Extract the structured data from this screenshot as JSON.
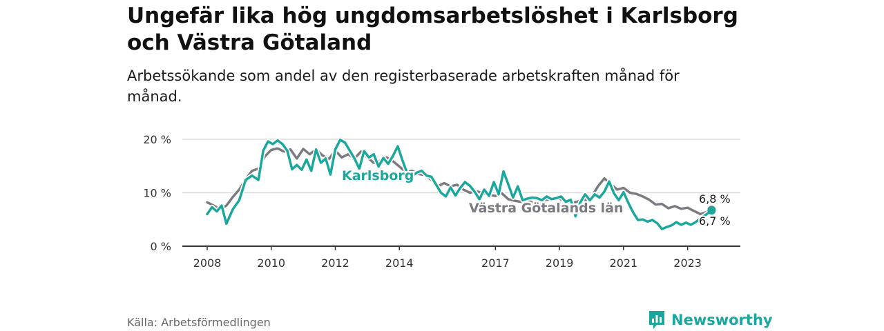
{
  "header": {
    "title": "Ungefär lika hög ungdomsarbetslöshet i Karlsborg och Västra Götaland",
    "subtitle": "Arbetssökande som andel av den registerbaserade arbetskraften månad för månad."
  },
  "footer": {
    "source": "Källa: Arbetsförmedlingen",
    "brand": "Newsworthy",
    "logo_icon": "bar-chart-logo-icon"
  },
  "colors": {
    "karlsborg": "#1aa79c",
    "vastra_gotaland": "#7b7a80",
    "grid": "#d9d9d9",
    "axis": "#333333"
  },
  "chart_data": {
    "type": "line",
    "ylim": [
      0,
      20
    ],
    "xlim": [
      2008,
      2024
    ],
    "yticks": [
      {
        "value": 0,
        "label": "0 %"
      },
      {
        "value": 10,
        "label": "10 %"
      },
      {
        "value": 20,
        "label": "20 %"
      }
    ],
    "xticks": [
      {
        "value": 2008,
        "label": "2008"
      },
      {
        "value": 2010,
        "label": "2010"
      },
      {
        "value": 2012,
        "label": "2012"
      },
      {
        "value": 2014,
        "label": "2014"
      },
      {
        "value": 2017,
        "label": "2017"
      },
      {
        "value": 2019,
        "label": "2019"
      },
      {
        "value": 2021,
        "label": "2021"
      },
      {
        "value": 2023,
        "label": "2023"
      }
    ],
    "series": [
      {
        "name": "Västra Götalands län",
        "label": "Västra Götalands län",
        "end_label": "6,8 %",
        "points": [
          [
            2008.0,
            8.2
          ],
          [
            2008.2,
            7.6
          ],
          [
            2008.4,
            6.9
          ],
          [
            2008.6,
            7.6
          ],
          [
            2008.8,
            9.2
          ],
          [
            2009.0,
            10.6
          ],
          [
            2009.2,
            12.5
          ],
          [
            2009.4,
            14.1
          ],
          [
            2009.6,
            14.5
          ],
          [
            2009.8,
            16.8
          ],
          [
            2010.0,
            18.0
          ],
          [
            2010.2,
            18.3
          ],
          [
            2010.4,
            17.7
          ],
          [
            2010.6,
            18.1
          ],
          [
            2010.8,
            16.4
          ],
          [
            2011.0,
            18.2
          ],
          [
            2011.2,
            17.2
          ],
          [
            2011.4,
            18.1
          ],
          [
            2011.6,
            17.0
          ],
          [
            2011.8,
            16.3
          ],
          [
            2012.0,
            17.9
          ],
          [
            2012.2,
            16.6
          ],
          [
            2012.4,
            17.2
          ],
          [
            2012.6,
            16.4
          ],
          [
            2012.8,
            17.7
          ],
          [
            2013.0,
            16.6
          ],
          [
            2013.2,
            15.6
          ],
          [
            2013.4,
            16.0
          ],
          [
            2013.6,
            16.6
          ],
          [
            2013.8,
            15.9
          ],
          [
            2014.0,
            14.9
          ],
          [
            2014.2,
            13.9
          ],
          [
            2014.4,
            14.1
          ],
          [
            2014.6,
            13.5
          ],
          [
            2014.8,
            13.3
          ],
          [
            2015.0,
            12.4
          ],
          [
            2015.2,
            11.2
          ],
          [
            2015.4,
            11.8
          ],
          [
            2015.6,
            11.2
          ],
          [
            2015.8,
            11.5
          ],
          [
            2016.0,
            10.6
          ],
          [
            2016.2,
            10.0
          ],
          [
            2016.4,
            10.3
          ],
          [
            2016.6,
            9.9
          ],
          [
            2016.8,
            9.6
          ],
          [
            2017.0,
            9.4
          ],
          [
            2017.2,
            9.9
          ],
          [
            2017.4,
            8.8
          ],
          [
            2017.6,
            8.5
          ],
          [
            2017.8,
            8.3
          ],
          [
            2018.0,
            8.5
          ],
          [
            2018.2,
            8.1
          ],
          [
            2018.4,
            8.4
          ],
          [
            2018.6,
            8.7
          ],
          [
            2018.8,
            8.8
          ],
          [
            2019.0,
            8.9
          ],
          [
            2019.2,
            8.3
          ],
          [
            2019.4,
            8.1
          ],
          [
            2019.6,
            8.4
          ],
          [
            2019.8,
            8.6
          ],
          [
            2020.0,
            9.2
          ],
          [
            2020.2,
            11.2
          ],
          [
            2020.4,
            12.7
          ],
          [
            2020.6,
            11.6
          ],
          [
            2020.8,
            10.6
          ],
          [
            2021.0,
            10.9
          ],
          [
            2021.2,
            10.0
          ],
          [
            2021.4,
            9.8
          ],
          [
            2021.6,
            9.3
          ],
          [
            2021.8,
            8.7
          ],
          [
            2022.0,
            7.8
          ],
          [
            2022.2,
            7.9
          ],
          [
            2022.4,
            7.1
          ],
          [
            2022.6,
            7.5
          ],
          [
            2022.8,
            7.0
          ],
          [
            2023.0,
            7.2
          ],
          [
            2023.2,
            6.6
          ],
          [
            2023.4,
            6.0
          ],
          [
            2023.6,
            6.4
          ],
          [
            2023.75,
            6.8
          ]
        ]
      },
      {
        "name": "Karlsborg",
        "label": "Karlsborg",
        "end_label": "6,7 %",
        "points": [
          [
            2008.0,
            6.0
          ],
          [
            2008.15,
            7.3
          ],
          [
            2008.3,
            6.5
          ],
          [
            2008.45,
            7.6
          ],
          [
            2008.6,
            4.2
          ],
          [
            2008.8,
            6.9
          ],
          [
            2009.0,
            8.6
          ],
          [
            2009.2,
            12.4
          ],
          [
            2009.4,
            13.2
          ],
          [
            2009.6,
            12.4
          ],
          [
            2009.75,
            17.9
          ],
          [
            2009.9,
            19.6
          ],
          [
            2010.05,
            19.1
          ],
          [
            2010.2,
            19.8
          ],
          [
            2010.35,
            19.1
          ],
          [
            2010.5,
            17.9
          ],
          [
            2010.65,
            14.4
          ],
          [
            2010.8,
            15.2
          ],
          [
            2010.95,
            14.3
          ],
          [
            2011.1,
            16.2
          ],
          [
            2011.25,
            14.1
          ],
          [
            2011.4,
            18.1
          ],
          [
            2011.55,
            15.6
          ],
          [
            2011.7,
            16.4
          ],
          [
            2011.85,
            13.4
          ],
          [
            2012.0,
            18.1
          ],
          [
            2012.15,
            19.9
          ],
          [
            2012.3,
            19.4
          ],
          [
            2012.45,
            17.9
          ],
          [
            2012.6,
            16.4
          ],
          [
            2012.75,
            14.5
          ],
          [
            2012.9,
            17.8
          ],
          [
            2013.05,
            16.6
          ],
          [
            2013.2,
            17.2
          ],
          [
            2013.35,
            14.9
          ],
          [
            2013.5,
            16.5
          ],
          [
            2013.65,
            15.4
          ],
          [
            2013.8,
            16.9
          ],
          [
            2013.95,
            18.7
          ],
          [
            2014.1,
            16.0
          ],
          [
            2014.25,
            13.6
          ],
          [
            2014.4,
            13.1
          ],
          [
            2014.55,
            13.8
          ],
          [
            2014.7,
            14.1
          ],
          [
            2014.85,
            13.2
          ],
          [
            2015.0,
            13.0
          ],
          [
            2015.15,
            11.5
          ],
          [
            2015.3,
            10.0
          ],
          [
            2015.45,
            9.3
          ],
          [
            2015.6,
            11.0
          ],
          [
            2015.75,
            9.5
          ],
          [
            2015.9,
            10.9
          ],
          [
            2016.05,
            12.0
          ],
          [
            2016.2,
            11.3
          ],
          [
            2016.35,
            10.2
          ],
          [
            2016.5,
            8.8
          ],
          [
            2016.65,
            10.6
          ],
          [
            2016.8,
            9.4
          ],
          [
            2016.95,
            12.0
          ],
          [
            2017.1,
            9.7
          ],
          [
            2017.25,
            14.0
          ],
          [
            2017.4,
            11.6
          ],
          [
            2017.55,
            9.1
          ],
          [
            2017.7,
            11.2
          ],
          [
            2017.85,
            8.6
          ],
          [
            2018.0,
            8.9
          ],
          [
            2018.15,
            9.1
          ],
          [
            2018.3,
            9.0
          ],
          [
            2018.45,
            8.6
          ],
          [
            2018.6,
            9.3
          ],
          [
            2018.75,
            8.8
          ],
          [
            2018.9,
            9.0
          ],
          [
            2019.05,
            9.3
          ],
          [
            2019.2,
            8.3
          ],
          [
            2019.35,
            8.7
          ],
          [
            2019.5,
            5.6
          ],
          [
            2019.65,
            8.2
          ],
          [
            2019.8,
            9.7
          ],
          [
            2019.95,
            8.6
          ],
          [
            2020.1,
            9.7
          ],
          [
            2020.25,
            9.1
          ],
          [
            2020.4,
            10.2
          ],
          [
            2020.55,
            12.1
          ],
          [
            2020.7,
            9.9
          ],
          [
            2020.85,
            8.6
          ],
          [
            2021.0,
            10.1
          ],
          [
            2021.15,
            8.1
          ],
          [
            2021.3,
            6.3
          ],
          [
            2021.45,
            4.9
          ],
          [
            2021.6,
            5.0
          ],
          [
            2021.75,
            4.6
          ],
          [
            2021.9,
            4.9
          ],
          [
            2022.05,
            4.3
          ],
          [
            2022.2,
            3.2
          ],
          [
            2022.35,
            3.6
          ],
          [
            2022.5,
            3.9
          ],
          [
            2022.65,
            4.5
          ],
          [
            2022.8,
            4.0
          ],
          [
            2022.95,
            4.4
          ],
          [
            2023.1,
            4.0
          ],
          [
            2023.25,
            4.5
          ],
          [
            2023.4,
            5.2
          ],
          [
            2023.55,
            5.8
          ],
          [
            2023.75,
            6.7
          ]
        ]
      }
    ]
  }
}
